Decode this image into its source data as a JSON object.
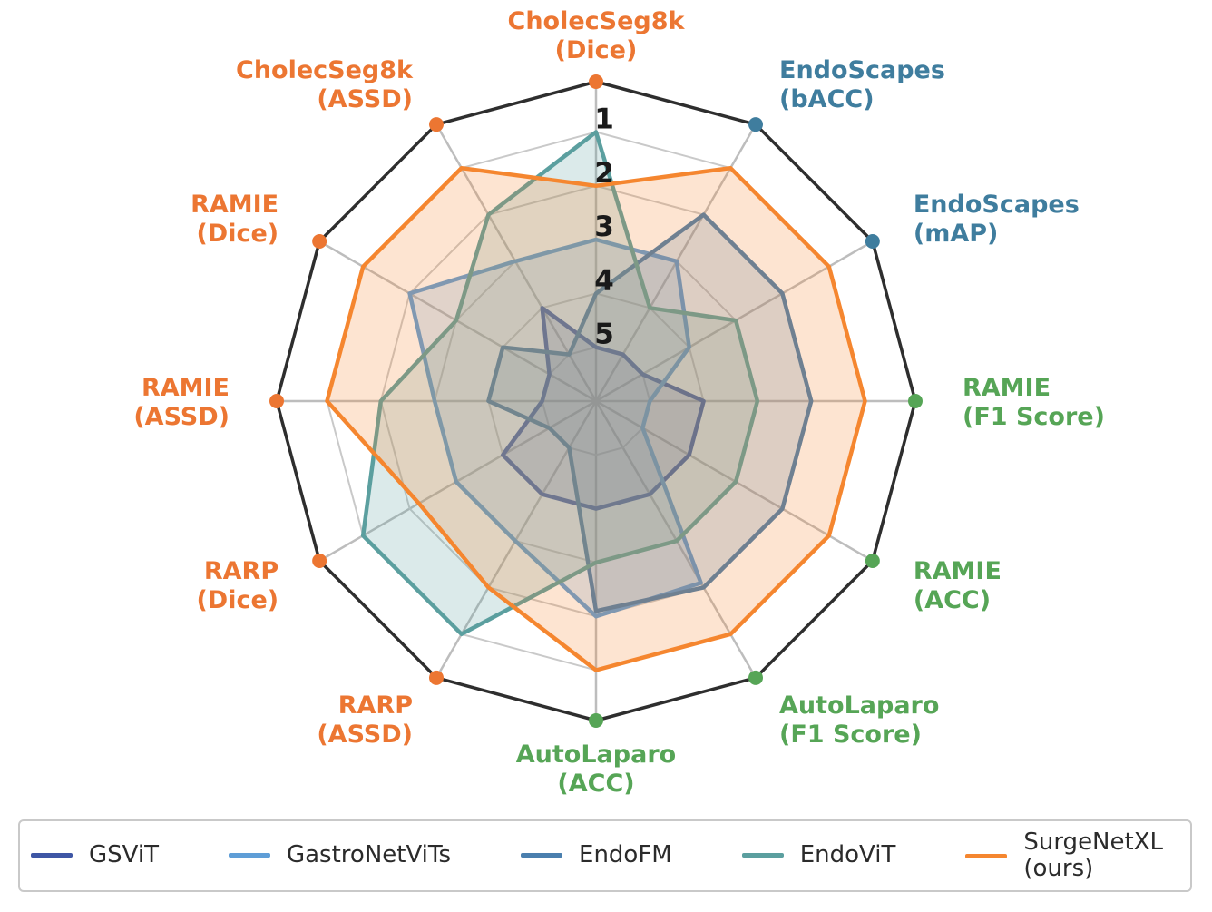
{
  "chart_data": {
    "type": "radar",
    "title": "",
    "tick_labels": [
      "1",
      "2",
      "3",
      "4",
      "5"
    ],
    "axis_range": {
      "outer_value": 0,
      "center_value": 6,
      "note_ticks_shown": "1-5"
    },
    "grid": true,
    "legend_position": "bottom",
    "axes": [
      {
        "label": [
          "CholecSeg8k",
          "(Dice)"
        ],
        "group_color": "#ec7632"
      },
      {
        "label": [
          "EndoScapes",
          "(bACC)"
        ],
        "group_color": "#3f7d9e"
      },
      {
        "label": [
          "EndoScapes",
          "(mAP)"
        ],
        "group_color": "#3f7d9e"
      },
      {
        "label": [
          "RAMIE",
          "(F1 Score)"
        ],
        "group_color": "#56a556"
      },
      {
        "label": [
          "RAMIE",
          "(ACC)"
        ],
        "group_color": "#56a556"
      },
      {
        "label": [
          "AutoLaparo",
          "(F1 Score)"
        ],
        "group_color": "#56a556"
      },
      {
        "label": [
          "AutoLaparo",
          "(ACC)"
        ],
        "group_color": "#56a556"
      },
      {
        "label": [
          "RARP",
          "(ASSD)"
        ],
        "group_color": "#ec7632"
      },
      {
        "label": [
          "RARP",
          "(Dice)"
        ],
        "group_color": "#ec7632"
      },
      {
        "label": [
          "RAMIE",
          "(ASSD)"
        ],
        "group_color": "#ec7632"
      },
      {
        "label": [
          "RAMIE",
          "(Dice)"
        ],
        "group_color": "#ec7632"
      },
      {
        "label": [
          "CholecSeg8k",
          "(ASSD)"
        ],
        "group_color": "#ec7632"
      }
    ],
    "series": [
      {
        "name": "GSViT",
        "color": "#3e56a5",
        "legend_label": [
          "GSViT"
        ],
        "values": [
          5,
          5,
          5,
          4,
          4,
          4,
          4,
          4,
          4,
          5,
          5,
          4
        ]
      },
      {
        "name": "GastroNetViTs",
        "color": "#5f9ed7",
        "legend_label": [
          "GastroNetViTs"
        ],
        "values": [
          3,
          3,
          4,
          5,
          5,
          2.1,
          2,
          3,
          3,
          3,
          2,
          3
        ]
      },
      {
        "name": "EndoFM",
        "color": "#4a7fae",
        "legend_label": [
          "EndoFM"
        ],
        "values": [
          4,
          2,
          2,
          2,
          2,
          2,
          2.1,
          5,
          5,
          4,
          4,
          5
        ]
      },
      {
        "name": "EndoViT",
        "color": "#5b9f9f",
        "legend_label": [
          "EndoViT"
        ],
        "values": [
          1,
          4,
          3,
          3,
          3,
          3,
          3,
          1,
          1,
          2,
          3,
          2
        ]
      },
      {
        "name": "SurgeNetXL",
        "color": "#f5862f",
        "legend_label": [
          "SurgeNetXL",
          "(ours)"
        ],
        "values": [
          2,
          1,
          1,
          1,
          1,
          1,
          1,
          2,
          2.2,
          1,
          1,
          1
        ]
      }
    ],
    "colors": {
      "grid_rings": "#c9c9c9",
      "spokes": "#bdbdbd",
      "outer_boundary": "#2e2e2e",
      "tick_text": "#1a1a1a",
      "background": "#ffffff",
      "legend_border": "#c9c9c9",
      "legend_text": "#2b2b2b"
    }
  }
}
